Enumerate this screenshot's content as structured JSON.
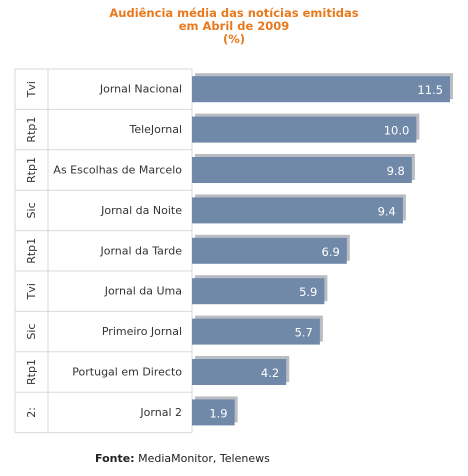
{
  "chart_data": {
    "type": "bar",
    "orientation": "horizontal",
    "title_lines": [
      "Audiência média das notícias emitidas",
      "em Abril de 2009",
      "(%)"
    ],
    "categories": [
      "Jornal Nacional",
      "TeleJornal",
      "As Escolhas de Marcelo",
      "Jornal da Noite",
      "Jornal da Tarde",
      "Jornal da Uma",
      "Primeiro Jornal",
      "Portugal em Directo",
      "Jornal 2"
    ],
    "channels": [
      "Tvi",
      "Rtp1",
      "Rtp1",
      "Sic",
      "Rtp1",
      "Tvi",
      "Sic",
      "Rtp1",
      "2:"
    ],
    "values": [
      11.5,
      10.0,
      9.8,
      9.4,
      6.9,
      5.9,
      5.7,
      4.2,
      1.9
    ],
    "value_labels": [
      "11.5",
      "10.0",
      "9.8",
      "9.4",
      "6.9",
      "5.9",
      "5.7",
      "4.2",
      "1.9"
    ],
    "xlim": [
      0,
      11.5
    ],
    "colors": {
      "bar": "#7089a8",
      "bar_shadow": "#b9bcc2",
      "title": "#e8791c",
      "grid": "#d9d9d9",
      "text": "#333333"
    }
  },
  "source": {
    "label": "Fonte:",
    "text": " MediaMonitor, Telenews"
  }
}
